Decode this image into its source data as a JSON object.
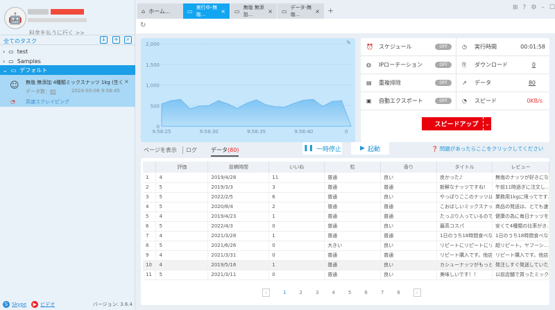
{
  "sidebar": {
    "pay_link": "料金を払うに行く >>",
    "all_tasks": "全てのタスク",
    "folders": [
      {
        "label": "test",
        "expanded": false
      },
      {
        "label": "Samples",
        "expanded": false
      },
      {
        "label": "デフォルト",
        "expanded": true
      }
    ],
    "task": {
      "title": "無塩 無添加 4種類ミックスナッツ 1kg (生く...",
      "data_label": "データ数：",
      "data_count": "80",
      "timestamp": "2024-03-08 9:58:45",
      "mode": "高速スクレイピング"
    },
    "footer": {
      "skype": "Skype",
      "video": "ビデオ",
      "version": "バージョン: 3.6.4"
    }
  },
  "tabs": [
    {
      "label": "ホーム...",
      "icon": "home-icon",
      "active": false
    },
    {
      "label": "実行中-無塩...",
      "active": true
    },
    {
      "label": "無塩 無添加...",
      "active": false
    },
    {
      "label": "データ-無塩...",
      "active": false
    }
  ],
  "stats": {
    "rows": [
      {
        "left": "スケジュール",
        "toggle": "OFF",
        "right": "実行時間",
        "value": "00:01:58"
      },
      {
        "left": "IPローテーション",
        "toggle": "OFF",
        "right": "ダウンロード",
        "value": "0"
      },
      {
        "left": "重複排除",
        "toggle": "OFF",
        "right": "データ",
        "value": "80"
      },
      {
        "left": "自動エクスポート",
        "toggle": "OFF",
        "right": "スピード",
        "value": "0KB/s"
      }
    ],
    "speed_up": "スピードアップ",
    "accent": "#e8000c"
  },
  "subtabs": {
    "page": "ページを表示",
    "log": "ログ",
    "data": "データ",
    "data_count": "(80)"
  },
  "buttons": {
    "pause": "一時停止",
    "start": "起動",
    "help": "問題があったらここをクリックしてください"
  },
  "table": {
    "headers": [
      "",
      "評価",
      "投稿時間",
      "いいね",
      "粒",
      "香り",
      "タイトル",
      "レビュー"
    ],
    "rows": [
      [
        "1",
        "4",
        "2019/4/28",
        "11",
        "普通",
        "良い",
        "良かった♪",
        "無塩のナッツが好きにな..."
      ],
      [
        "2",
        "5",
        "2019/3/3",
        "3",
        "普通",
        "普通",
        "新鮮なナッツですね!",
        "午前11時過ぎに注文し..."
      ],
      [
        "3",
        "5",
        "2022/2/5",
        "6",
        "普通",
        "良い",
        "やっぱりここのナッツは...",
        "業務用1kgに限ってです..."
      ],
      [
        "4",
        "5",
        "2020/8/4",
        "2",
        "普通",
        "普通",
        "こおばしいミックスナッ...",
        "商品の発送は、とても速..."
      ],
      [
        "5",
        "4",
        "2019/4/23",
        "1",
        "普通",
        "普通",
        "たっぷり入っているので...",
        "健康の為に毎日ナッツを..."
      ],
      [
        "6",
        "5",
        "2022/4/3",
        "0",
        "普通",
        "良い",
        "最高コスパ",
        "安くて4種類の比率がき..."
      ],
      [
        "7",
        "4",
        "2021/3/28",
        "1",
        "普通",
        "普通",
        "1日のうち18時間食べな...",
        "1日のうち18時間食べな..."
      ],
      [
        "8",
        "5",
        "2021/6/26",
        "0",
        "大きい",
        "良い",
        "リピートにリピートにリ...",
        "超リピート。ヤフーシ..."
      ],
      [
        "9",
        "4",
        "2021/3/31",
        "0",
        "普通",
        "普通",
        "リピート購入です。他店...",
        "リピート購入です。他店..."
      ],
      [
        "10",
        "4",
        "2019/5/16",
        "1",
        "普通",
        "良い",
        "カシューナッツがもっと...",
        "発注しすぐ発送していた..."
      ],
      [
        "11",
        "5",
        "2021/3/11",
        "0",
        "普通",
        "良い",
        "美味しいです！！",
        "以前店舗で買ったミック..."
      ]
    ],
    "highlighted_row": 10
  },
  "pagination": {
    "pages": [
      "1",
      "2",
      "3",
      "4",
      "5",
      "6",
      "7",
      "8"
    ],
    "current": "1"
  },
  "chart_data": {
    "type": "area",
    "x": [
      "9:58:25",
      "9:58:26",
      "9:58:27",
      "9:58:28",
      "9:58:29",
      "9:58:30",
      "9:58:31",
      "9:58:32",
      "9:58:33",
      "9:58:34",
      "9:58:35",
      "9:58:36",
      "9:58:37",
      "9:58:38",
      "9:58:39",
      "9:58:40",
      "9:58:41",
      "9:58:42",
      "9:58:43",
      "9:58:44",
      "9:58:45"
    ],
    "values": [
      540,
      620,
      650,
      420,
      490,
      500,
      620,
      540,
      430,
      560,
      640,
      520,
      470,
      460,
      560,
      630,
      650,
      480,
      600,
      620,
      0
    ],
    "xticks": [
      "9:58:25",
      "9:58:30",
      "9:58:35",
      "9:58:40",
      "0"
    ],
    "yticks": [
      "0",
      "500",
      "1,000",
      "1,500",
      "2,000"
    ],
    "ylim": [
      0,
      2000
    ],
    "grid": true,
    "color": "#7ec4f4"
  }
}
